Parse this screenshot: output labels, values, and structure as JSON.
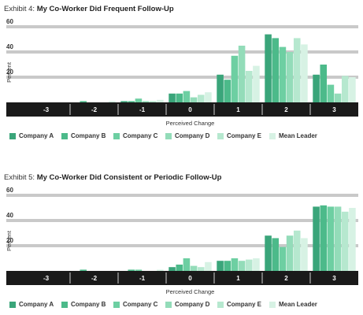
{
  "exhibits": [
    {
      "prefix": "Exhibit 4: ",
      "title": "My Co-Worker Did Frequent Follow-Up",
      "ylabel": "Percent",
      "xlabel": "Perceived Change"
    },
    {
      "prefix": "Exhibit 5: ",
      "title": "My Co-Worker Did Consistent or Periodic Follow-Up",
      "ylabel": "Percent",
      "xlabel": "Perceived Change"
    }
  ],
  "legend": [
    {
      "name": "Company A",
      "color": "#3aa57a"
    },
    {
      "name": "Company B",
      "color": "#4cba8a"
    },
    {
      "name": "Company C",
      "color": "#6dcfa2"
    },
    {
      "name": "Company D",
      "color": "#93dcb9"
    },
    {
      "name": "Company E",
      "color": "#b6e8cf"
    },
    {
      "name": "Mean Leader",
      "color": "#d7f2e4"
    }
  ],
  "chart_data": [
    {
      "type": "bar",
      "title": "My Co-Worker Did Frequent Follow-Up",
      "xlabel": "Perceived Change",
      "ylabel": "Percent",
      "ylim": [
        0,
        60
      ],
      "yticks": [
        20,
        40,
        60
      ],
      "categories": [
        "-3",
        "-2",
        "-1",
        "0",
        "1",
        "2",
        "3"
      ],
      "series": [
        {
          "name": "Company A",
          "values": [
            0,
            0,
            1,
            7,
            22,
            54,
            22
          ]
        },
        {
          "name": "Company B",
          "values": [
            0,
            1,
            1,
            7,
            18,
            51,
            30
          ]
        },
        {
          "name": "Company C",
          "values": [
            0,
            0,
            3,
            9,
            37,
            44,
            14
          ]
        },
        {
          "name": "Company D",
          "values": [
            0,
            0,
            1,
            4,
            45,
            40,
            7
          ]
        },
        {
          "name": "Company E",
          "values": [
            0,
            0,
            1,
            6,
            25,
            51,
            21
          ]
        },
        {
          "name": "Mean Leader",
          "values": [
            0,
            1,
            2,
            8,
            29,
            46,
            20
          ]
        }
      ]
    },
    {
      "type": "bar",
      "title": "My Co-Worker Did Consistent or Periodic Follow-Up",
      "xlabel": "Perceived Change",
      "ylabel": "Percent",
      "ylim": [
        0,
        60
      ],
      "yticks": [
        20,
        40,
        60
      ],
      "categories": [
        "-3",
        "-2",
        "-1",
        "0",
        "1",
        "2",
        "3"
      ],
      "series": [
        {
          "name": "Company A",
          "values": [
            0,
            0,
            0,
            3,
            8,
            28,
            51
          ]
        },
        {
          "name": "Company B",
          "values": [
            0,
            1,
            1,
            5,
            8,
            26,
            52
          ]
        },
        {
          "name": "Company C",
          "values": [
            0,
            0,
            1,
            10,
            10,
            19,
            51
          ]
        },
        {
          "name": "Company D",
          "values": [
            0,
            0,
            0,
            4,
            8,
            28,
            51
          ]
        },
        {
          "name": "Company E",
          "values": [
            0,
            0,
            0,
            3,
            9,
            32,
            47
          ]
        },
        {
          "name": "Mean Leader",
          "values": [
            0,
            0,
            1,
            7,
            10,
            26,
            50
          ]
        }
      ]
    }
  ]
}
